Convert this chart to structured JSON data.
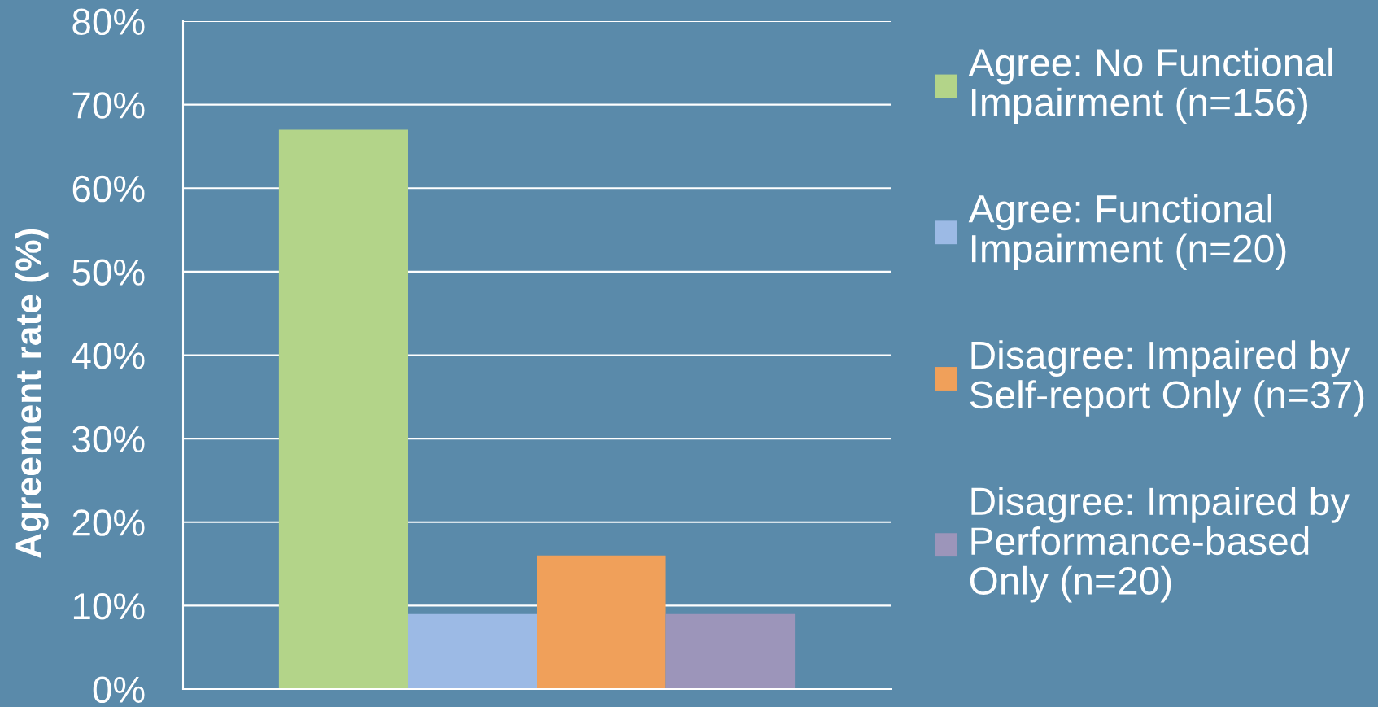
{
  "chart_data": {
    "type": "bar",
    "ylabel": "Agreement rate (%)",
    "categories": [
      null
    ],
    "series": [
      {
        "name": "Agree: No Functional\nImpairment (n=156)",
        "color": "#b3d489",
        "values": [
          67
        ]
      },
      {
        "name": "Agree: Functional\nImpairment (n=20)",
        "color": "#9cbae5",
        "values": [
          9
        ]
      },
      {
        "name": "Disagree: Impaired by\nSelf-report Only (n=37)",
        "color": "#f0a05a",
        "values": [
          16
        ]
      },
      {
        "name": "Disagree: Impaired by\nPerformance-based\nOnly (n=20)",
        "color": "#9c95ba",
        "values": [
          9
        ]
      }
    ],
    "ylim": [
      0,
      80
    ],
    "yticks": [
      {
        "value": 0,
        "label": "0%"
      },
      {
        "value": 10,
        "label": "10%"
      },
      {
        "value": 20,
        "label": "20%"
      },
      {
        "value": 30,
        "label": "30%"
      },
      {
        "value": 40,
        "label": "40%"
      },
      {
        "value": 50,
        "label": "50%"
      },
      {
        "value": 60,
        "label": "60%"
      },
      {
        "value": 70,
        "label": "70%"
      },
      {
        "value": 80,
        "label": "80%"
      }
    ],
    "grid": "y",
    "legend": "right"
  }
}
